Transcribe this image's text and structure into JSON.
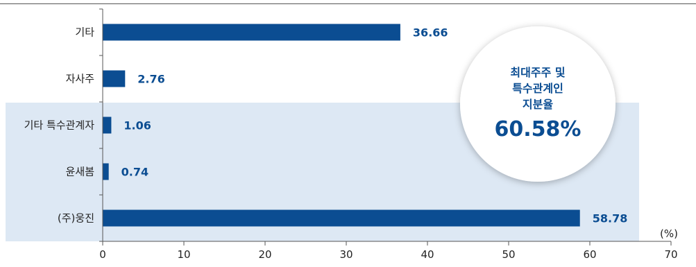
{
  "chart_data": {
    "type": "bar",
    "orientation": "horizontal",
    "categories": [
      "기타",
      "자사주",
      "기타 특수관계자",
      "윤새봄",
      "(주)웅진"
    ],
    "values": [
      36.66,
      2.76,
      1.06,
      0.74,
      58.78
    ],
    "value_labels": [
      "36.66",
      "2.76",
      "1.06",
      "0.74",
      "58.78"
    ],
    "highlighted_categories": [
      "기타 특수관계자",
      "윤새봄",
      "(주)웅진"
    ],
    "xlim": [
      0,
      70
    ],
    "xticks": [
      0,
      10,
      20,
      30,
      40,
      50,
      60,
      70
    ],
    "unit": "(%)",
    "grid": false,
    "callout": {
      "lines": [
        "최대주주 및",
        "특수관계인",
        "지분율"
      ],
      "value": "60.58%"
    },
    "colors": {
      "bar": "#0b4d92",
      "label": "#0b4d92",
      "highlight_band": "#dde8f4",
      "axis": "#555555"
    }
  }
}
